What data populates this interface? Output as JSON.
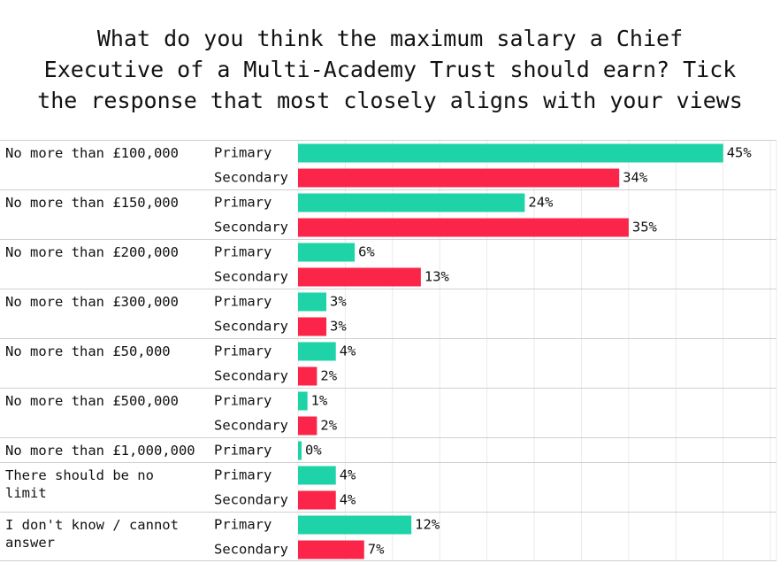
{
  "chart_data": {
    "type": "bar",
    "orientation": "horizontal",
    "title": "What do you think the maximum salary a Chief\nExecutive of a Multi-Academy Trust should earn? Tick\nthe response that most closely aligns with your views",
    "xlim": [
      0,
      50
    ],
    "grid": true,
    "colors": {
      "Primary": "#1dd3a7",
      "Secondary": "#fb2449"
    },
    "groups": [
      {
        "category": [
          "No more than £100,000"
        ],
        "bars": [
          {
            "series": "Primary",
            "value": 45,
            "label": "45%"
          },
          {
            "series": "Secondary",
            "value": 34,
            "label": "34%"
          }
        ]
      },
      {
        "category": [
          "No more than £150,000"
        ],
        "bars": [
          {
            "series": "Primary",
            "value": 24,
            "label": "24%"
          },
          {
            "series": "Secondary",
            "value": 35,
            "label": "35%"
          }
        ]
      },
      {
        "category": [
          "No more than £200,000"
        ],
        "bars": [
          {
            "series": "Primary",
            "value": 6,
            "label": "6%"
          },
          {
            "series": "Secondary",
            "value": 13,
            "label": "13%"
          }
        ]
      },
      {
        "category": [
          "No more than £300,000"
        ],
        "bars": [
          {
            "series": "Primary",
            "value": 3,
            "label": "3%"
          },
          {
            "series": "Secondary",
            "value": 3,
            "label": "3%"
          }
        ]
      },
      {
        "category": [
          "No more than £50,000"
        ],
        "bars": [
          {
            "series": "Primary",
            "value": 4,
            "label": "4%"
          },
          {
            "series": "Secondary",
            "value": 2,
            "label": "2%"
          }
        ]
      },
      {
        "category": [
          "No more than £500,000"
        ],
        "bars": [
          {
            "series": "Primary",
            "value": 1,
            "label": "1%"
          },
          {
            "series": "Secondary",
            "value": 2,
            "label": "2%"
          }
        ]
      },
      {
        "category": [
          "No more than £1,000,000"
        ],
        "bars": [
          {
            "series": "Primary",
            "value": 0,
            "label": "0%"
          }
        ]
      },
      {
        "category": [
          "There should be no",
          "limit"
        ],
        "bars": [
          {
            "series": "Primary",
            "value": 4,
            "label": "4%"
          },
          {
            "series": "Secondary",
            "value": 4,
            "label": "4%"
          }
        ]
      },
      {
        "category": [
          "I don't know / cannot",
          "answer"
        ],
        "bars": [
          {
            "series": "Primary",
            "value": 12,
            "label": "12%"
          },
          {
            "series": "Secondary",
            "value": 7,
            "label": "7%"
          }
        ]
      }
    ]
  }
}
